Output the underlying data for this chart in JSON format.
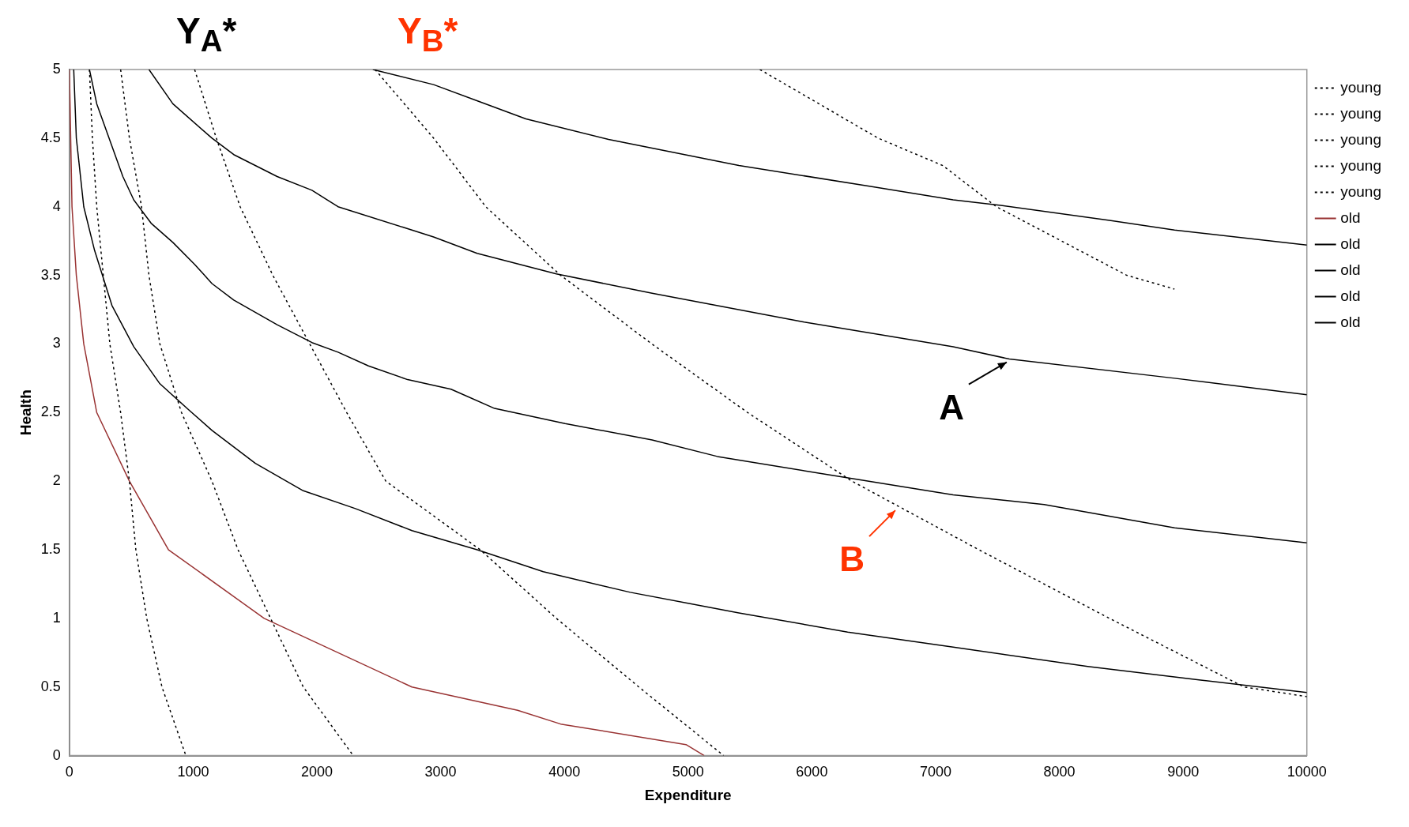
{
  "chart_data": {
    "type": "line",
    "xlabel": "Expenditure",
    "ylabel": "Health",
    "xlim": [
      0,
      10000
    ],
    "ylim": [
      0,
      5
    ],
    "xticks": [
      0,
      1000,
      2000,
      3000,
      4000,
      5000,
      6000,
      7000,
      8000,
      9000,
      10000
    ],
    "yticks": [
      0,
      0.5,
      1,
      1.5,
      2,
      2.5,
      3,
      3.5,
      4,
      4.5,
      5
    ],
    "grid": false,
    "legend": "top right",
    "annotations": [
      "Y$_{A}$*",
      "Y$_{B}$*",
      {
        "text": "A",
        "x": 7600,
        "y": 2.89
      },
      {
        "text": "B",
        "x": 6700,
        "y": 1.81
      }
    ],
    "series": [
      {
        "name": "young",
        "color": "#000000",
        "line_style": "dotted",
        "x": [
          162,
          186,
          221,
          327,
          414,
          485,
          537,
          625,
          748,
          941
        ],
        "values": [
          5,
          4.5,
          4,
          3,
          2.5,
          2,
          1.5,
          1,
          0.5,
          0
        ]
      },
      {
        "name": "young",
        "color": "#000000",
        "line_style": "dotted",
        "x": [
          414,
          485,
          583,
          643,
          731,
          906,
          1152,
          1363,
          1626,
          1890,
          2294
        ],
        "values": [
          5,
          4.5,
          4,
          3.5,
          3,
          2.5,
          2,
          1.5,
          1,
          0.5,
          0
        ]
      },
      {
        "name": "young",
        "color": "#000000",
        "line_style": "dotted",
        "x": [
          1012,
          1187,
          1380,
          1644,
          1942,
          2241,
          2557,
          3320,
          3935,
          4602,
          5287
        ],
        "values": [
          5,
          4.5,
          4,
          3.5,
          3,
          2.5,
          2,
          1.5,
          1,
          0.5,
          0
        ]
      },
      {
        "name": "young",
        "color": "#000000",
        "line_style": "dotted",
        "x": [
          2470,
          2943,
          3365,
          3970,
          4707,
          5481,
          6324,
          7350,
          8405,
          9493,
          10000
        ],
        "values": [
          5,
          4.5,
          4,
          3.5,
          3,
          2.5,
          2,
          1.5,
          1,
          0.5,
          0.43
        ]
      },
      {
        "name": "young",
        "color": "#000000",
        "line_style": "dotted",
        "x": [
          5580,
          6535,
          7058,
          7491,
          8545,
          8930
        ],
        "values": [
          5,
          4.5,
          4.3,
          4,
          3.5,
          3.4
        ]
      },
      {
        "name": "old",
        "color": "#993333",
        "line_style": "solid",
        "x": [
          0,
          21,
          56,
          116,
          221,
          485,
          801,
          1574,
          2768,
          3622,
          3970,
          4983,
          5130
        ],
        "values": [
          5,
          4,
          3.5,
          3,
          2.5,
          2,
          1.5,
          1,
          0.5,
          0.33,
          0.23,
          0.08,
          0
        ]
      },
      {
        "name": "old",
        "color": "#000000",
        "line_style": "solid",
        "x": [
          35,
          56,
          116,
          204,
          344,
          520,
          731,
          976,
          1152,
          1503,
          1890,
          2311,
          2768,
          3295,
          3829,
          4532,
          5410,
          6289,
          7142,
          8229,
          9141,
          10000
        ],
        "values": [
          5,
          4.5,
          4,
          3.68,
          3.28,
          2.98,
          2.71,
          2.51,
          2.37,
          2.13,
          1.93,
          1.8,
          1.64,
          1.5,
          1.34,
          1.19,
          1.04,
          0.9,
          0.79,
          0.65,
          0.55,
          0.46
        ]
      },
      {
        "name": "old",
        "color": "#000000",
        "line_style": "solid",
        "x": [
          162,
          221,
          432,
          520,
          660,
          836,
          1012,
          1152,
          1328,
          1679,
          1960,
          2171,
          2417,
          2733,
          3084,
          3436,
          4006,
          4709,
          5236,
          6114,
          7142,
          7877,
          8931,
          10000
        ],
        "values": [
          5,
          4.75,
          4.22,
          4.05,
          3.88,
          3.74,
          3.58,
          3.44,
          3.32,
          3.14,
          3.01,
          2.94,
          2.84,
          2.74,
          2.67,
          2.53,
          2.42,
          2.3,
          2.18,
          2.05,
          1.9,
          1.83,
          1.66,
          1.55
        ]
      },
      {
        "name": "old",
        "color": "#000000",
        "line_style": "solid",
        "x": [
          643,
          836,
          1152,
          1328,
          1679,
          1960,
          2171,
          2698,
          2943,
          3295,
          3935,
          4709,
          5938,
          7142,
          7596,
          8931,
          10000
        ],
        "values": [
          5,
          4.75,
          4.5,
          4.38,
          4.22,
          4.12,
          4,
          3.85,
          3.78,
          3.66,
          3.51,
          3.37,
          3.16,
          2.98,
          2.89,
          2.75,
          2.63
        ]
      },
      {
        "name": "old",
        "color": "#000000",
        "line_style": "solid",
        "x": [
          2452,
          2943,
          3302,
          3689,
          4357,
          5410,
          6465,
          7142,
          7526,
          8405,
          8931,
          10000
        ],
        "values": [
          5,
          4.89,
          4.77,
          4.64,
          4.49,
          4.3,
          4.15,
          4.05,
          4.01,
          3.9,
          3.83,
          3.72
        ]
      }
    ]
  }
}
